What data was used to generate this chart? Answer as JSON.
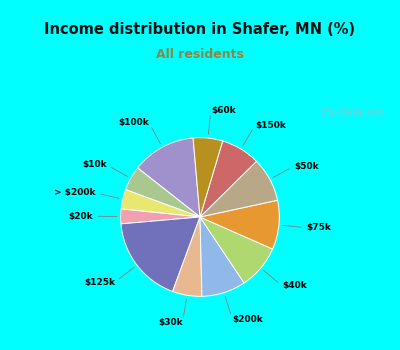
{
  "title": "Income distribution in Shafer, MN (%)",
  "subtitle": "All residents",
  "title_color": "#111111",
  "subtitle_color": "#888844",
  "background_outer": "#00FFFF",
  "background_chart": "#d8ede4",
  "watermark": "City-Data.com",
  "labels": [
    "$100k",
    "$10k",
    "> $200k",
    "$20k",
    "$125k",
    "$30k",
    "$200k",
    "$40k",
    "$75k",
    "$50k",
    "$150k",
    "$60k"
  ],
  "values": [
    13,
    5,
    4,
    3,
    18,
    6,
    9,
    9,
    10,
    9,
    8,
    6
  ],
  "colors": [
    "#a090cc",
    "#a8c890",
    "#e8e870",
    "#f0a0b0",
    "#7070bb",
    "#e8b890",
    "#90b8e8",
    "#b0d870",
    "#e89830",
    "#b8a888",
    "#cc6868",
    "#b89020"
  ],
  "startangle": 95
}
